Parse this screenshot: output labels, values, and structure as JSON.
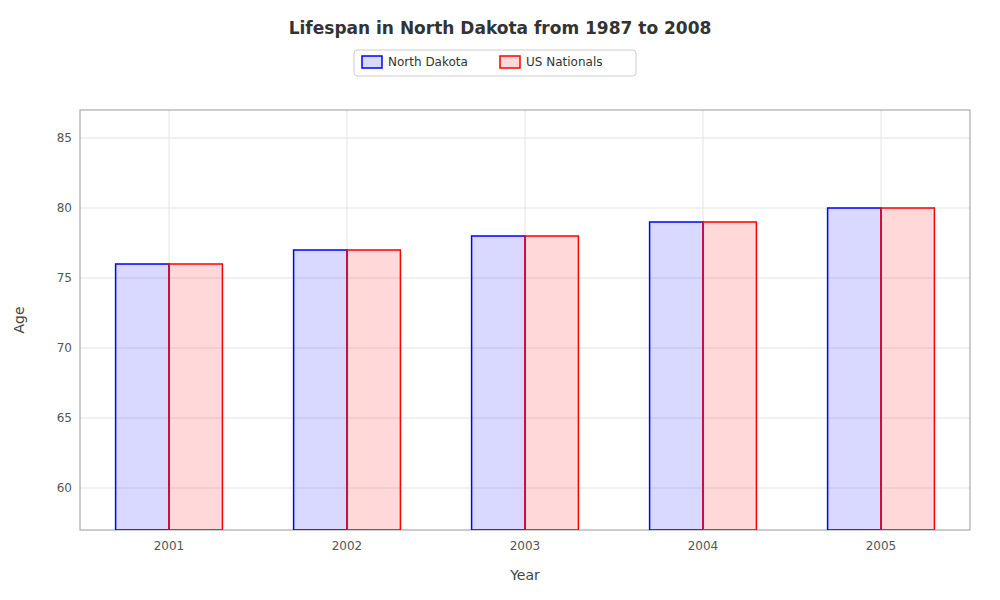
{
  "chart_data": {
    "type": "bar",
    "title": "Lifespan in North Dakota from 1987 to 2008",
    "x_label": "Year",
    "y_label": "Age",
    "categories": [
      "2001",
      "2002",
      "2003",
      "2004",
      "2005"
    ],
    "series": [
      {
        "name": "North Dakota",
        "color": "#0000ff",
        "values": [
          76.0,
          77.0,
          78.0,
          79.0,
          80.0
        ]
      },
      {
        "name": "US Nationals",
        "color": "#ff0000",
        "values": [
          76.0,
          77.0,
          78.0,
          79.0,
          80.0
        ]
      }
    ],
    "ylim": [
      57,
      87
    ],
    "yticks": [
      60,
      65,
      70,
      75,
      80,
      85
    ],
    "grid": true,
    "legend": "top"
  }
}
